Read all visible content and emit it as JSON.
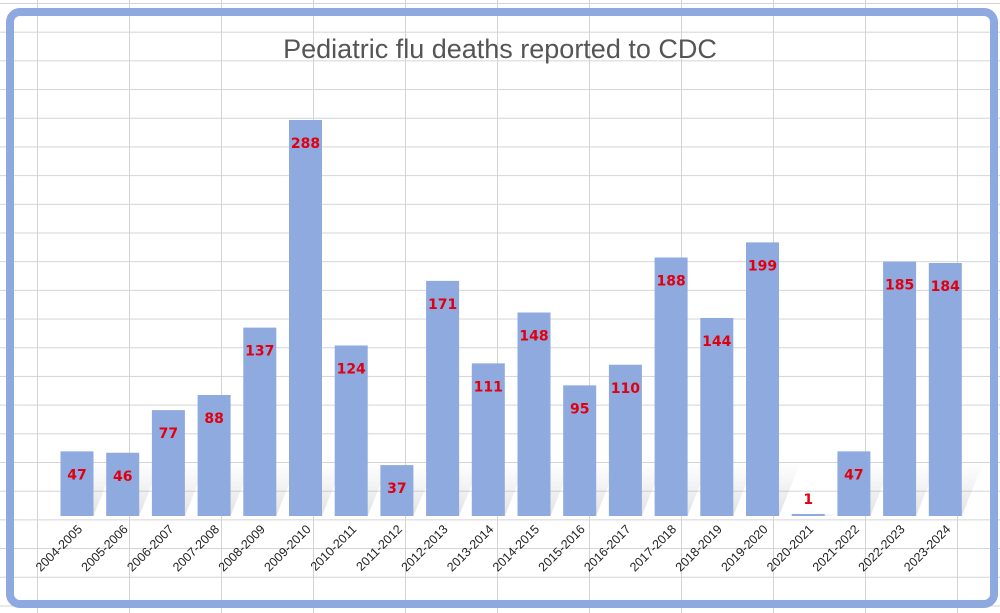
{
  "chart_data": {
    "type": "bar",
    "title": "Pediatric flu deaths reported to CDC",
    "xlabel": "",
    "ylabel": "",
    "categories": [
      "2004-2005",
      "2005-2006",
      "2006-2007",
      "2007-2008",
      "2008-2009",
      "2009-2010",
      "2010-2011",
      "2011-2012",
      "2012-2013",
      "2013-2014",
      "2014-2015",
      "2015-2016",
      "2016-2017",
      "2017-2018",
      "2018-2019",
      "2019-2020",
      "2020-2021",
      "2021-2022",
      "2022-2023",
      "2023-2024"
    ],
    "values": [
      47,
      46,
      77,
      88,
      137,
      288,
      124,
      37,
      171,
      111,
      148,
      95,
      110,
      188,
      144,
      199,
      1,
      47,
      185,
      184
    ],
    "ylim": [
      0,
      300
    ],
    "grid": true,
    "legend": "none",
    "colors": {
      "bar": "#8eaadf",
      "label": "#e0000f",
      "frame": "#8da9df"
    }
  }
}
